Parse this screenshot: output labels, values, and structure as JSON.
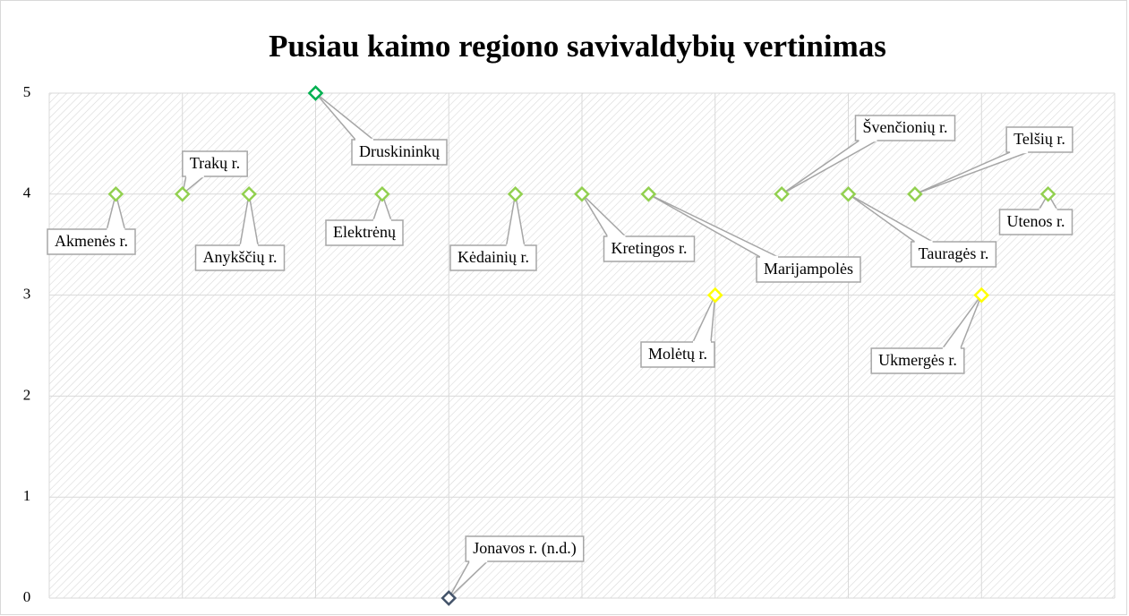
{
  "chart_data": {
    "type": "scatter",
    "title": "Pusiau kaimo regiono savivaldybių vertinimas",
    "x": [
      1,
      2,
      3,
      4,
      5,
      6,
      7,
      8,
      9,
      10,
      11,
      12,
      13,
      14,
      15
    ],
    "values": [
      4,
      4,
      4,
      5,
      4,
      0,
      4,
      4,
      4,
      3,
      4,
      4,
      4,
      3,
      4
    ],
    "point_labels": [
      "Akmenės r.",
      "Trakų r.",
      "Anykščių r.",
      "Druskininkų",
      "Elektrėnų",
      "Jonavos r. (n.d.)",
      "Kėdainių r.",
      "Kretingos r.",
      "Marijampolės",
      "Molėtų r.",
      "Švenčionių r.",
      "Tauragės r.",
      "Telšių r.",
      "Ukmergės r.",
      "Utenos r."
    ],
    "colors": [
      "#92d050",
      "#92d050",
      "#92d050",
      "#00b050",
      "#92d050",
      "#44546a",
      "#92d050",
      "#92d050",
      "#92d050",
      "#ffff00",
      "#92d050",
      "#92d050",
      "#92d050",
      "#ffff00",
      "#92d050"
    ],
    "xlim": [
      0,
      16
    ],
    "xticks": [
      0,
      2,
      4,
      6,
      8,
      10,
      12,
      14,
      16
    ],
    "ylim": [
      0,
      5
    ],
    "yticks": [
      0,
      1,
      2,
      3,
      4,
      5
    ],
    "grid": true
  }
}
